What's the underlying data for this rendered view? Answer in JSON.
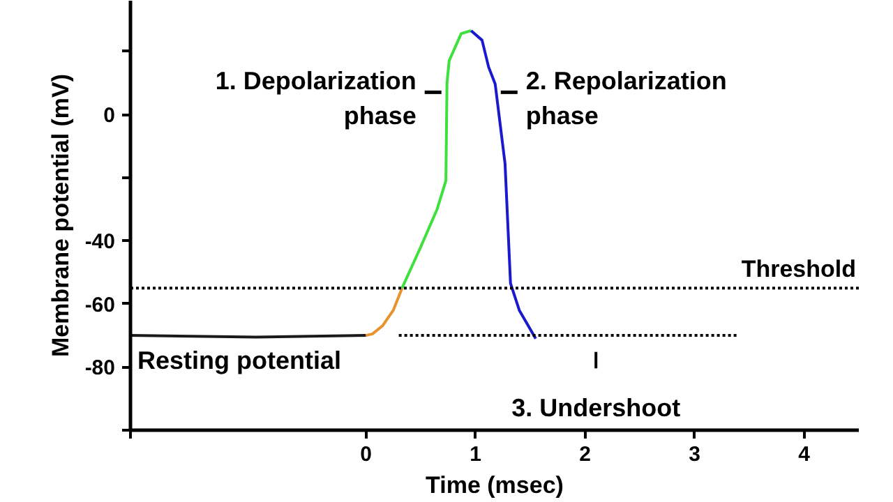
{
  "chart_data": {
    "type": "line",
    "xlabel": "Time (msec)",
    "ylabel": "Membrane potential (mV)",
    "xlim": [
      -2.15,
      4.5
    ],
    "ylim": [
      -100,
      36
    ],
    "xticks": [
      {
        "value": -2.15,
        "label": null
      },
      0,
      1,
      2,
      3,
      4
    ],
    "yticks": [
      {
        "value": -100,
        "label": null
      },
      -80,
      -60,
      -40,
      {
        "value": -20,
        "label": null
      },
      0,
      {
        "value": 20,
        "label": null
      }
    ],
    "grid": false,
    "marker": "none",
    "series": [
      {
        "color": "#1a1a1a",
        "x": [
          -2.15,
          -1.0,
          0.0
        ],
        "values": [
          -70,
          -70.5,
          -70
        ]
      },
      {
        "color": "#e8922e",
        "x": [
          0.0,
          0.06,
          0.15,
          0.25,
          0.33
        ],
        "values": [
          -70,
          -69.5,
          -67,
          -62,
          -55
        ]
      },
      {
        "color": "#3ee03e",
        "x": [
          0.33,
          0.5,
          0.65,
          0.73,
          0.74,
          0.76,
          0.87,
          0.96
        ],
        "values": [
          -55,
          -42,
          -30,
          -21,
          10,
          17,
          25.6,
          26.5
        ]
      },
      {
        "color": "#1a1acc",
        "x": [
          0.96,
          1.06,
          1.12,
          1.18,
          1.27,
          1.32,
          1.4,
          1.55
        ],
        "values": [
          26.5,
          23.5,
          15,
          9.6,
          -15.6,
          -53.5,
          -62,
          -71
        ]
      },
      {
        "color": "#000000",
        "line_style": "dotted",
        "x": [
          0.3,
          3.4
        ],
        "values": [
          -70,
          -70
        ]
      }
    ],
    "ref_lines": [
      {
        "axis": "y",
        "value": -55,
        "label": "Threshold",
        "line_style": "dotted",
        "color": "#000000"
      }
    ],
    "annotations": [
      {
        "text": "Resting potential",
        "x": -2.15,
        "y": -70
      },
      {
        "text": "1. Depolarization\nphase",
        "x": 0.74,
        "y": 7
      },
      {
        "text": "2. Repolarization\nphase",
        "x": 1.18,
        "y": 7
      },
      {
        "text": "3. Undershoot",
        "x": 2.1,
        "y": -70
      }
    ]
  }
}
